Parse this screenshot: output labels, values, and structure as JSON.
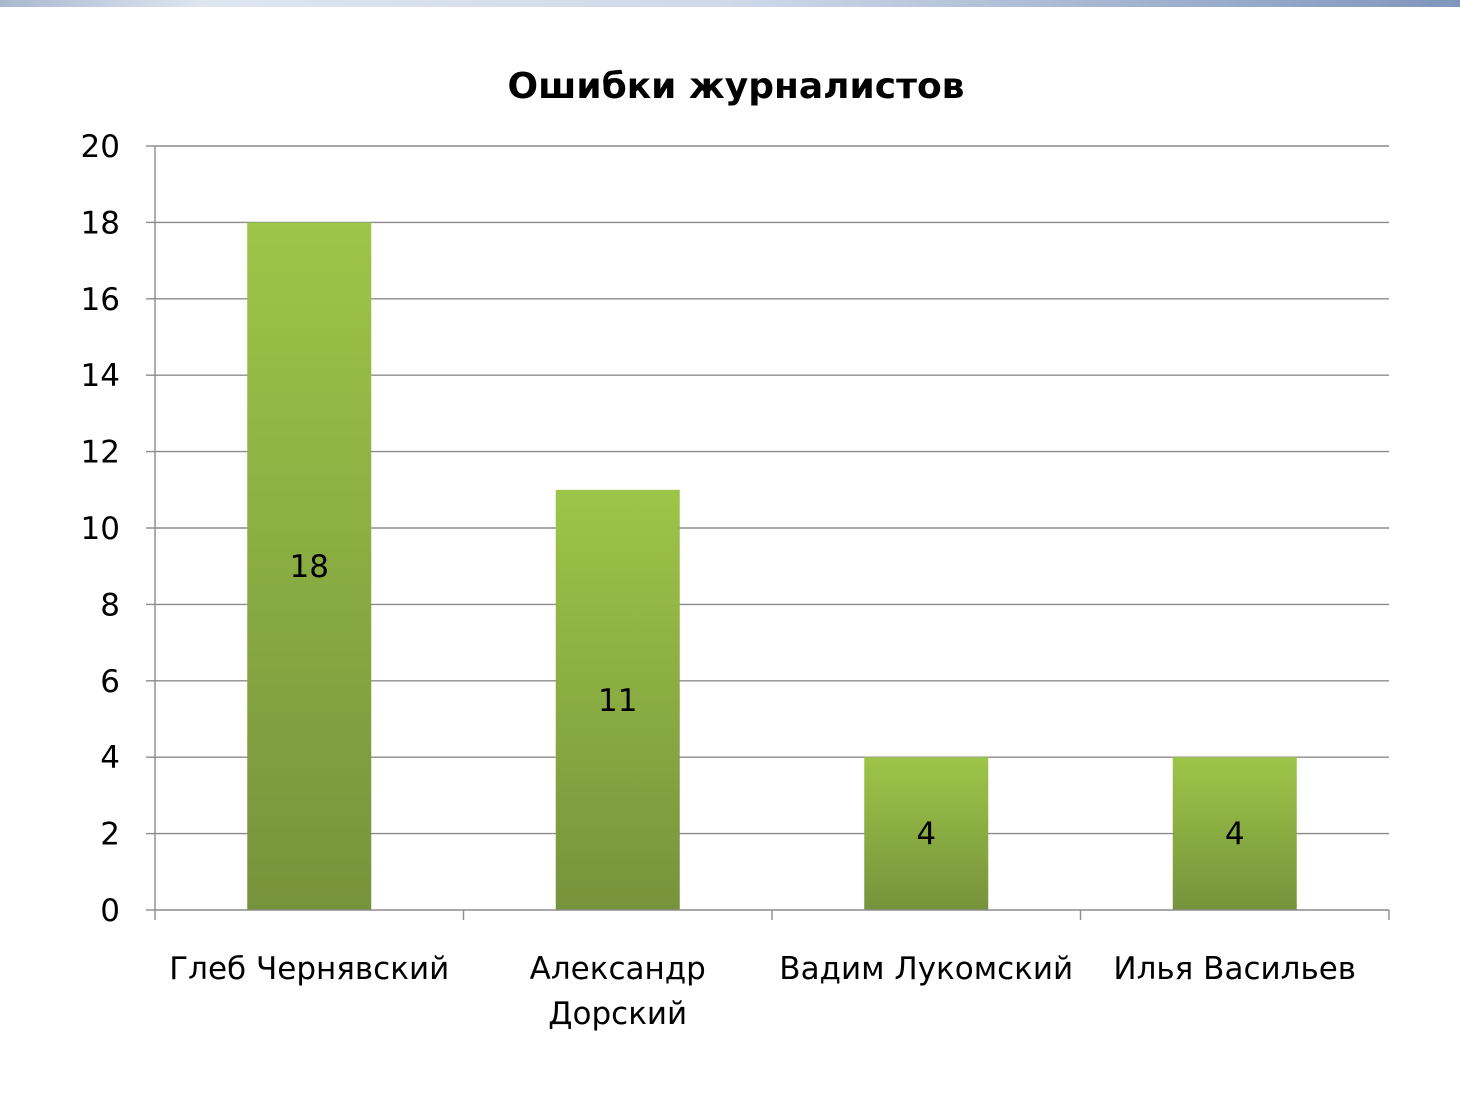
{
  "chart_data": {
    "type": "bar",
    "title": "Ошибки журналистов",
    "categories": [
      "Глеб Чернявский",
      "Александр Дорский",
      "Вадим Лукомский",
      "Илья Васильев"
    ],
    "category_lines": [
      [
        "Глеб Чернявский"
      ],
      [
        "Александр",
        "Дорский"
      ],
      [
        "Вадим Лукомский"
      ],
      [
        "Илья Васильев"
      ]
    ],
    "values": [
      18,
      11,
      4,
      4
    ],
    "data_labels": [
      "18",
      "11",
      "4",
      "4"
    ],
    "ylim": [
      0,
      20
    ],
    "yticks": [
      0,
      2,
      4,
      6,
      8,
      10,
      12,
      14,
      16,
      18,
      20
    ],
    "grid": true,
    "legend": "none",
    "colors": {
      "bar_top": "#9dc548",
      "bar_bottom": "#76933c",
      "grid": "#8c8c8c",
      "axis": "#8c8c8c"
    }
  }
}
